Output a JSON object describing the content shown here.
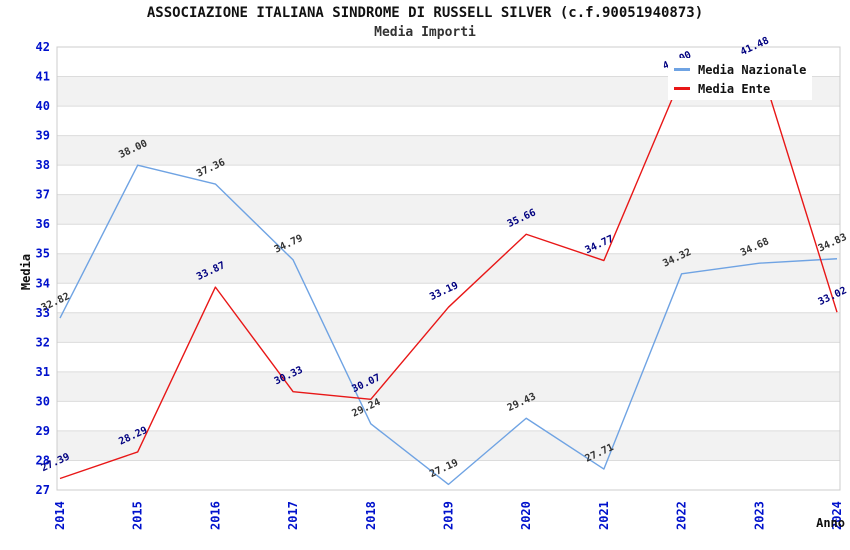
{
  "title": "ASSOCIAZIONE ITALIANA SINDROME DI RUSSELL SILVER (c.f.90051940873)",
  "subtitle": "Media Importi",
  "legend": {
    "position": "top-right",
    "items": [
      {
        "label": "Media Nazionale",
        "color": "#6fa3e3"
      },
      {
        "label": "Media Ente",
        "color": "#e81717"
      }
    ]
  },
  "axes": {
    "y_title": "Media",
    "x_title": "Anno",
    "y_ticks": [
      27,
      28,
      29,
      30,
      31,
      32,
      33,
      34,
      35,
      36,
      37,
      38,
      39,
      40,
      41,
      42
    ],
    "tick_color": "#0011cc"
  },
  "colors": {
    "band_fill": "#f2f2f2",
    "grid_line": "#dcdcdc",
    "plot_border": "#cccccc",
    "nazionale_line": "#6fa3e3",
    "ente_line": "#e81717",
    "nazionale_label": "#333333",
    "ente_label": "#000080",
    "axis_text": "#111111"
  },
  "chart_data": {
    "type": "line",
    "title": "ASSOCIAZIONE ITALIANA SINDROME DI RUSSELL SILVER (c.f.90051940873)",
    "subtitle": "Media Importi",
    "xlabel": "Anno",
    "ylabel": "Media",
    "ylim": [
      27,
      42
    ],
    "grid": true,
    "alternating_bands": true,
    "legend_position": "top-right",
    "categories": [
      "2014",
      "2015",
      "2016",
      "2017",
      "2018",
      "2019",
      "2020",
      "2021",
      "2022",
      "2023",
      "2024"
    ],
    "series": [
      {
        "name": "Media Nazionale",
        "color": "#6fa3e3",
        "label_color": "#333333",
        "values": [
          32.82,
          38.0,
          37.36,
          34.79,
          29.24,
          27.19,
          29.43,
          27.71,
          34.32,
          34.68,
          34.83
        ]
      },
      {
        "name": "Media Ente",
        "color": "#e81717",
        "label_color": "#000080",
        "values": [
          27.39,
          28.29,
          33.87,
          30.33,
          30.07,
          33.19,
          35.66,
          34.77,
          41.0,
          41.48,
          33.02
        ],
        "hidden_label_indices": [
          8
        ],
        "hidden_label_reason": "covered by legend box"
      }
    ]
  }
}
